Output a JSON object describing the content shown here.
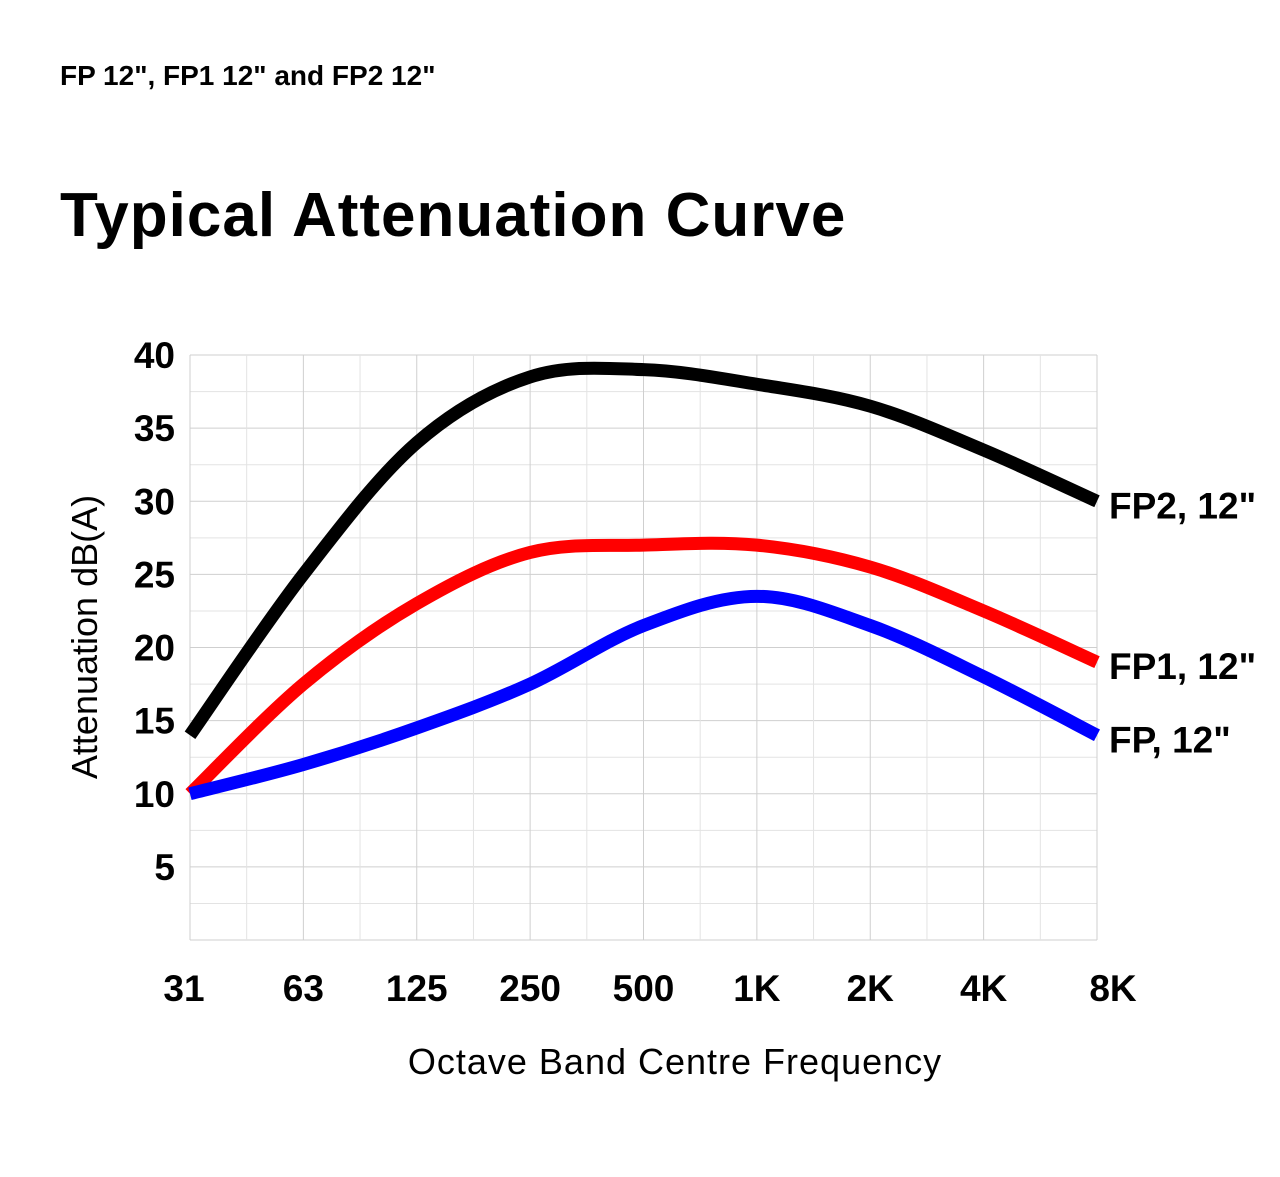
{
  "header": {
    "subtitle": "FP 12\", FP1 12\" and FP2 12\"",
    "title": "Typical Attenuation Curve"
  },
  "chart_data": {
    "type": "line",
    "title": "Typical Attenuation Curve",
    "subtitle": "FP 12\", FP1 12\" and FP2 12\"",
    "xlabel": "Octave Band Centre Frequency",
    "ylabel": "Attenuation dB(A)",
    "categories": [
      "31",
      "63",
      "125",
      "250",
      "500",
      "1K",
      "2K",
      "4K",
      "8K"
    ],
    "yticks": [
      5,
      10,
      15,
      20,
      25,
      30,
      35,
      40
    ],
    "ylim": [
      0,
      40
    ],
    "grid": true,
    "legend": "inline-right",
    "series": [
      {
        "name": "FP2, 12\"",
        "color": "#000000",
        "values": [
          14,
          25,
          34,
          38.5,
          39,
          38,
          36.5,
          33.5,
          30
        ]
      },
      {
        "name": "FP1, 12\"",
        "color": "#ff0000",
        "values": [
          10,
          17.5,
          23,
          26.5,
          27,
          27,
          25.5,
          22.5,
          19
        ]
      },
      {
        "name": "FP, 12\"",
        "color": "#0000ff",
        "values": [
          10,
          12,
          14.5,
          17.5,
          21.5,
          23.5,
          21.5,
          18,
          14
        ]
      }
    ]
  }
}
